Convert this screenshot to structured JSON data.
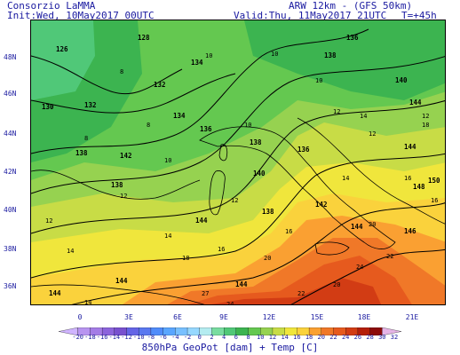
{
  "header": {
    "org": "Consorzio LaMMA",
    "model": "ARW 12km - (GFS 50km)",
    "init": "Init:Wed, 10May2017 00UTC",
    "valid": "Valid:Thu, 11May2017 21UTC",
    "lead": "T=+45h"
  },
  "lat_labels": [
    "48N",
    "46N",
    "44N",
    "42N",
    "40N",
    "38N",
    "36N"
  ],
  "lon_labels": [
    "0",
    "3E",
    "6E",
    "9E",
    "12E",
    "15E",
    "18E",
    "21E"
  ],
  "colorbar": {
    "labels": [
      "-20",
      "-18",
      "-16",
      "-14",
      "-12",
      "-10",
      "-8",
      "-6",
      "-4",
      "-2",
      "0",
      "2",
      "4",
      "6",
      "8",
      "10",
      "12",
      "14",
      "16",
      "18",
      "20",
      "22",
      "24",
      "26",
      "28",
      "30",
      "32"
    ],
    "colors": [
      "#cfb4ff",
      "#b894f0",
      "#a47ce6",
      "#8c64dc",
      "#7850cf",
      "#6464e6",
      "#5a78f0",
      "#508cfa",
      "#5aa6ff",
      "#78c0ff",
      "#96d8ff",
      "#b4ecf0",
      "#78dca0",
      "#50c878",
      "#3cb450",
      "#64c850",
      "#96d250",
      "#c8dc46",
      "#f0e63c",
      "#fad23c",
      "#faa032",
      "#f07828",
      "#e65a1e",
      "#d23c14",
      "#b41e0a",
      "#8c0a0a",
      "#e6b4e6"
    ],
    "title": "850hPa GeoPot [dam] + Temp [C]"
  },
  "map": {
    "geopotential_labels": [
      "126",
      "128",
      "130",
      "132",
      "132",
      "134",
      "134",
      "136",
      "136",
      "138",
      "138",
      "138",
      "138",
      "140",
      "140",
      "142",
      "142",
      "144",
      "144",
      "144",
      "144",
      "144",
      "144",
      "144",
      "146",
      "148",
      "150",
      "136",
      "138"
    ],
    "temperature_labels": [
      "8",
      "8",
      "8",
      "10",
      "10",
      "10",
      "10",
      "10",
      "12",
      "12",
      "12",
      "12",
      "12",
      "14",
      "14",
      "14",
      "14",
      "16",
      "16",
      "16",
      "18",
      "18",
      "20",
      "20",
      "20",
      "22",
      "22",
      "24",
      "24",
      "27",
      "16",
      "14",
      "12"
    ]
  }
}
